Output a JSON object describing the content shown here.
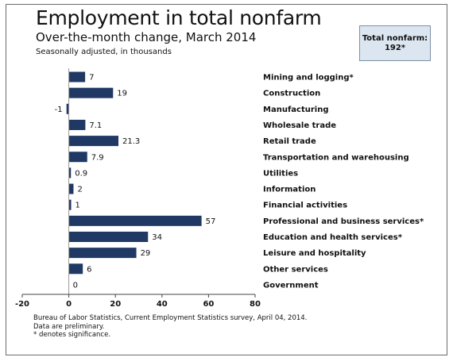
{
  "header": {
    "title": "Employment in total nonfarm",
    "subtitle": "Over-the-month change, March 2014",
    "note": "Seasonally adjusted, in thousands"
  },
  "total_box": {
    "line1": "Total nonfarm:",
    "line2": "192*"
  },
  "footer": {
    "source": "Bureau of Labor Statistics, Current Employment Statistics survey, April 04, 2014.",
    "preliminary": "Data are preliminary.",
    "significance": "* denotes significance."
  },
  "colors": {
    "bar": "#1f3864",
    "total_box_bg": "#dce6f1"
  },
  "chart_data": {
    "type": "bar",
    "orientation": "horizontal",
    "title": "Employment in total nonfarm",
    "subtitle": "Over-the-month change, March 2014",
    "xlim": [
      -20,
      80
    ],
    "xticks": [
      -20,
      0,
      20,
      40,
      60,
      80
    ],
    "xtick_labels": [
      "-20",
      "0",
      "20",
      "40",
      "60",
      "80"
    ],
    "categories": [
      "Mining and logging*",
      "Construction",
      "Manufacturing",
      "Wholesale trade",
      "Retail trade",
      "Transportation and warehousing",
      "Utilities",
      "Information",
      "Financial activities",
      "Professional and business services*",
      "Education and health services*",
      "Leisure and hospitality",
      "Other services",
      "Government"
    ],
    "values": [
      7,
      19,
      -1,
      7.1,
      21.3,
      7.9,
      0.9,
      2,
      1,
      57,
      34,
      29,
      6,
      0
    ],
    "value_labels": [
      "7",
      "19",
      "-1",
      "7.1",
      "21.3",
      "7.9",
      "0.9",
      "2",
      "1",
      "57",
      "34",
      "29",
      "6",
      "0"
    ],
    "grid": false
  }
}
